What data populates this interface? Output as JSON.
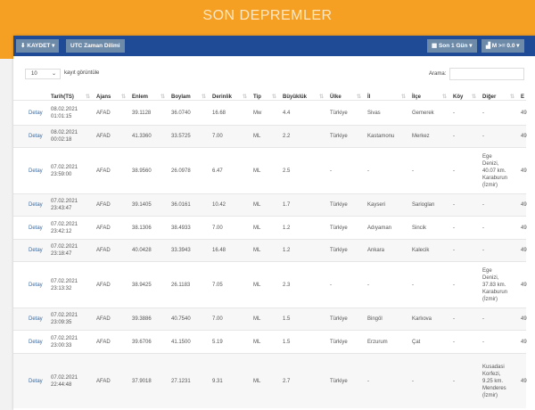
{
  "page_title": "SON DEPREMLER",
  "toolbar": {
    "save": "⬇ KAYDET ▾",
    "utc": "UTC Zaman Dilimi",
    "period": "▦ Son 1 Gün ▾",
    "magnitude": "▟ M >= 0.0 ▾"
  },
  "controls": {
    "page_size": "10",
    "page_size_label": "kayıt görüntüle",
    "search_label": "Arama:",
    "search_value": ""
  },
  "columns": [
    "",
    "Tarih(TS)",
    "Ajans",
    "Enlem",
    "Boylam",
    "Derinlik",
    "Tip",
    "Büyüklük",
    "Ülke",
    "İl",
    "İlçe",
    "Köy",
    "Diğer",
    "E"
  ],
  "rows": [
    [
      "Detay",
      "08.02.2021\n01:01:15",
      "AFAD",
      "39.1128",
      "36.0740",
      "16.68",
      "Mw",
      "4.4",
      "Türkiye",
      "Sivas",
      "Gemerek",
      "-",
      "-",
      "49"
    ],
    [
      "Detay",
      "08.02.2021\n00:02:18",
      "AFAD",
      "41.3360",
      "33.5725",
      "7.00",
      "ML",
      "2.2",
      "Türkiye",
      "Kastamonu",
      "Merkez",
      "-",
      "-",
      "49"
    ],
    [
      "Detay",
      "07.02.2021\n23:59:00",
      "AFAD",
      "38.9560",
      "26.0978",
      "6.47",
      "ML",
      "2.5",
      "-",
      "-",
      "-",
      "-",
      "Ege\nDenizi,\n40.07 km.\nKaraburun\n(İzmir)",
      "49"
    ],
    [
      "Detay",
      "07.02.2021\n23:43:47",
      "AFAD",
      "39.1405",
      "36.0161",
      "10.42",
      "ML",
      "1.7",
      "Türkiye",
      "Kayseri",
      "Sarioglan",
      "-",
      "-",
      "49"
    ],
    [
      "Detay",
      "07.02.2021\n23:42:12",
      "AFAD",
      "38.1306",
      "38.4933",
      "7.00",
      "ML",
      "1.2",
      "Türkiye",
      "Adıyaman",
      "Sincik",
      "-",
      "-",
      "49"
    ],
    [
      "Detay",
      "07.02.2021\n23:18:47",
      "AFAD",
      "40.0428",
      "33.3943",
      "16.48",
      "ML",
      "1.2",
      "Türkiye",
      "Ankara",
      "Kalecik",
      "-",
      "-",
      "49"
    ],
    [
      "Detay",
      "07.02.2021\n23:13:32",
      "AFAD",
      "38.9425",
      "26.1183",
      "7.05",
      "ML",
      "2.3",
      "-",
      "-",
      "-",
      "-",
      "Ege\nDenizi,\n37.83 km.\nKaraburun\n(İzmir)",
      "49"
    ],
    [
      "Detay",
      "07.02.2021\n23:09:35",
      "AFAD",
      "39.3886",
      "40.7540",
      "7.00",
      "ML",
      "1.5",
      "Türkiye",
      "Bingöl",
      "Karlıova",
      "-",
      "-",
      "49"
    ],
    [
      "Detay",
      "07.02.2021\n23:00:33",
      "AFAD",
      "39.6706",
      "41.1500",
      "5.19",
      "ML",
      "1.5",
      "Türkiye",
      "Erzurum",
      "Çat",
      "-",
      "-",
      "49"
    ],
    [
      "Detay",
      "07.02.2021\n22:44:48",
      "AFAD",
      "37.9018",
      "27.1231",
      "9.31",
      "ML",
      "2.7",
      "Türkiye",
      "-",
      "-",
      "-",
      "Kusadasi\nKorfezi,\n9.25 km.\nMenderes\n(İzmir)",
      "49"
    ]
  ]
}
